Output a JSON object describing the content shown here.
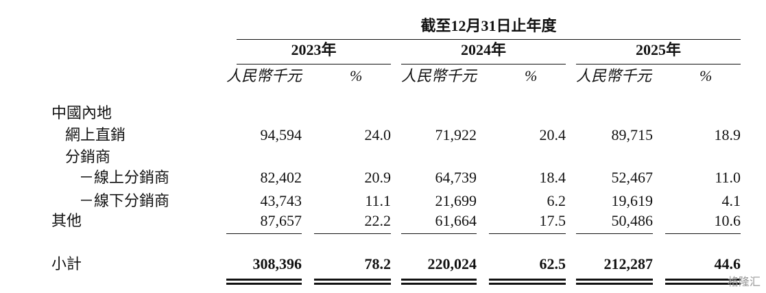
{
  "header": {
    "title": "截至12月31日止年度",
    "years": [
      "2023年",
      "2024年",
      "2025年"
    ],
    "units": [
      "人民幣千元",
      "%",
      "人民幣千元",
      "%",
      "人民幣千元",
      "%"
    ]
  },
  "table": {
    "rows": [
      {
        "label": "中國內地"
      },
      {
        "label": "網上直銷",
        "cells": [
          "94,594",
          "24.0",
          "71,922",
          "20.4",
          "89,715",
          "18.9"
        ]
      },
      {
        "label": "分銷商"
      },
      {
        "label": "－線上分銷商",
        "cells": [
          "82,402",
          "20.9",
          "64,739",
          "18.4",
          "52,467",
          "11.0"
        ]
      },
      {
        "label": "－線下分銷商",
        "cells": [
          "43,743",
          "11.1",
          "21,699",
          "6.2",
          "19,619",
          "4.1"
        ]
      },
      {
        "label": "其他",
        "cells": [
          "87,657",
          "22.2",
          "61,664",
          "17.5",
          "50,486",
          "10.6"
        ]
      },
      {
        "label": "小計",
        "cells": [
          "308,396",
          "78.2",
          "220,024",
          "62.5",
          "212,287",
          "44.6"
        ]
      }
    ]
  },
  "watermark": "格隆汇"
}
